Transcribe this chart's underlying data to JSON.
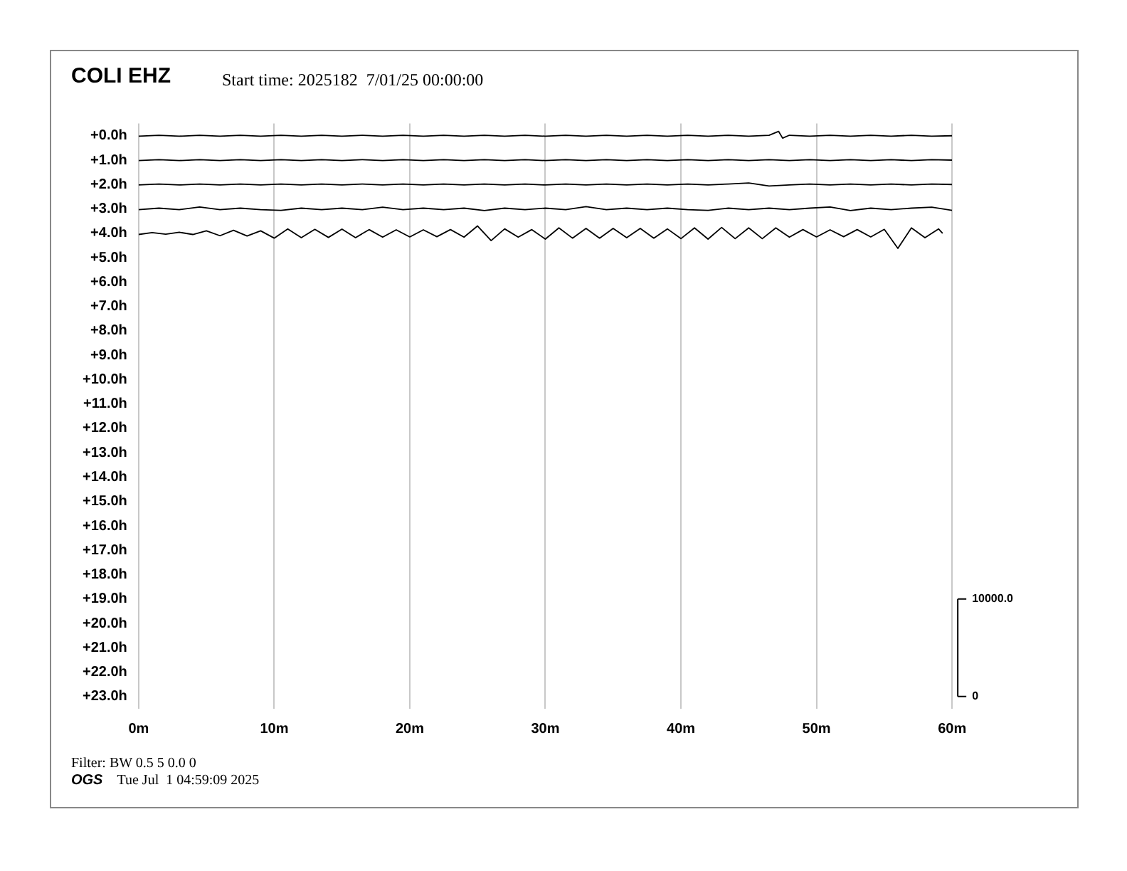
{
  "chart_data": {
    "type": "line",
    "title": "COLI EHZ",
    "subtitle": "Start time: 2025182  7/01/25 00:00:00",
    "annotations": [
      "Filter: BW 0.5 5 0.0 0",
      "OGS",
      "Tue Jul  1 04:59:09 2025"
    ],
    "x": [
      0,
      1.5,
      3,
      4.5,
      6,
      7.5,
      9,
      10.5,
      12,
      13.5,
      15,
      16.5,
      18,
      19.5,
      21,
      22.5,
      24,
      25.5,
      27,
      28.5,
      30,
      31.5,
      33,
      34.5,
      36,
      37.5,
      39,
      40.5,
      42,
      43.5,
      45,
      46.5,
      48,
      49.5,
      51,
      52.5,
      54,
      55.5,
      57,
      58.5,
      60
    ],
    "series": [
      {
        "color": "#000000",
        "x": [
          0,
          1.5,
          3,
          4.5,
          6,
          7.5,
          9,
          10.5,
          12,
          13.5,
          15,
          16.5,
          18,
          19.5,
          21,
          22.5,
          24,
          25.5,
          27,
          28.5,
          30,
          31.5,
          33,
          34.5,
          36,
          37.5,
          39,
          40.5,
          42,
          43.5,
          45,
          46.5,
          47.2,
          47.5,
          48,
          49.5,
          51,
          52.5,
          54,
          55.5,
          57,
          58.5,
          60
        ],
        "values": [
          0.02,
          -0.02,
          0.02,
          -0.02,
          0.02,
          -0.02,
          0.02,
          -0.02,
          0.02,
          -0.02,
          0.02,
          -0.02,
          0.02,
          -0.02,
          0.02,
          -0.02,
          0.02,
          -0.02,
          0.02,
          -0.02,
          0.02,
          -0.02,
          0.02,
          -0.02,
          0.02,
          -0.02,
          0.02,
          -0.02,
          0.02,
          -0.02,
          0.02,
          -0.02,
          -0.18,
          0.1,
          -0.02,
          0.02,
          -0.02,
          0.02,
          -0.02,
          0.02,
          -0.02,
          0.02,
          0
        ]
      },
      {
        "color": "#000000",
        "values": [
          1.02,
          0.98,
          1.02,
          0.98,
          1.02,
          0.98,
          1.02,
          0.98,
          1.02,
          0.98,
          1.02,
          0.98,
          1.02,
          0.98,
          1.02,
          0.98,
          1.02,
          0.98,
          1.02,
          0.98,
          1.02,
          0.98,
          1.02,
          0.98,
          1.02,
          0.98,
          1.02,
          0.98,
          1.02,
          0.98,
          1.02,
          0.98,
          1.02,
          0.98,
          1.02,
          0.98,
          1.02,
          0.98,
          1.02,
          0.98,
          1
        ]
      },
      {
        "color": "#000000",
        "values": [
          2.02,
          1.98,
          2.02,
          1.98,
          2.02,
          1.98,
          2.02,
          1.98,
          2.02,
          1.98,
          2.02,
          1.98,
          2.02,
          1.98,
          2.02,
          1.98,
          2.02,
          1.98,
          2.02,
          1.98,
          2.02,
          1.98,
          2.02,
          1.98,
          2.02,
          1.98,
          2.02,
          1.98,
          2.02,
          1.98,
          1.94,
          2.06,
          2.02,
          1.98,
          2.02,
          1.98,
          2.02,
          1.98,
          2.02,
          1.98,
          2
        ]
      },
      {
        "color": "#000000",
        "values": [
          3.03,
          2.97,
          3.03,
          2.92,
          3.03,
          2.97,
          3.03,
          3.06,
          2.97,
          3.03,
          2.97,
          3.03,
          2.93,
          3.03,
          2.97,
          3.03,
          2.97,
          3.07,
          2.97,
          3.03,
          2.97,
          3.03,
          2.91,
          3.03,
          2.97,
          3.03,
          2.97,
          3.03,
          3.06,
          2.97,
          3.03,
          2.97,
          3.03,
          2.97,
          2.92,
          3.07,
          2.97,
          3.03,
          2.97,
          2.93,
          3.06
        ]
      },
      {
        "color": "#000000",
        "x": [
          0,
          1,
          2,
          3,
          4,
          5,
          6,
          7,
          8,
          9,
          10,
          11,
          12,
          13,
          14,
          15,
          16,
          17,
          18,
          19,
          20,
          21,
          22,
          23,
          24,
          25,
          26,
          27,
          28,
          29,
          30,
          31,
          32,
          33,
          34,
          35,
          36,
          37,
          38,
          39,
          40,
          41,
          42,
          43,
          44,
          45,
          46,
          47,
          48,
          49,
          50,
          51,
          52,
          53,
          54,
          55,
          56,
          57,
          58,
          59,
          59.3
        ],
        "values": [
          4.05,
          3.97,
          4.04,
          3.96,
          4.05,
          3.9,
          4.1,
          3.88,
          4.11,
          3.9,
          4.2,
          3.82,
          4.18,
          3.84,
          4.17,
          3.83,
          4.18,
          3.85,
          4.16,
          3.86,
          4.15,
          3.86,
          4.14,
          3.85,
          4.16,
          3.7,
          4.3,
          3.82,
          4.16,
          3.85,
          4.24,
          3.78,
          4.2,
          3.8,
          4.2,
          3.8,
          4.18,
          3.8,
          4.2,
          3.82,
          4.22,
          3.78,
          4.24,
          3.76,
          4.22,
          3.78,
          4.22,
          3.78,
          4.16,
          3.85,
          4.15,
          3.86,
          4.14,
          3.85,
          4.15,
          3.84,
          4.62,
          3.78,
          4.18,
          3.82,
          4.0
        ]
      }
    ],
    "xlim": [
      0,
      60
    ],
    "xticks": [
      {
        "value": 0,
        "label": "0m"
      },
      {
        "value": 10,
        "label": "10m"
      },
      {
        "value": 20,
        "label": "20m"
      },
      {
        "value": 30,
        "label": "30m"
      },
      {
        "value": 40,
        "label": "40m"
      },
      {
        "value": 50,
        "label": "50m"
      },
      {
        "value": 60,
        "label": "60m"
      }
    ],
    "ylim": [
      23.5,
      -0.5
    ],
    "yticks": [
      {
        "value": 0,
        "label": "+0.0h"
      },
      {
        "value": 1,
        "label": "+1.0h"
      },
      {
        "value": 2,
        "label": "+2.0h"
      },
      {
        "value": 3,
        "label": "+3.0h"
      },
      {
        "value": 4,
        "label": "+4.0h"
      },
      {
        "value": 5,
        "label": "+5.0h"
      },
      {
        "value": 6,
        "label": "+6.0h"
      },
      {
        "value": 7,
        "label": "+7.0h"
      },
      {
        "value": 8,
        "label": "+8.0h"
      },
      {
        "value": 9,
        "label": "+9.0h"
      },
      {
        "value": 10,
        "label": "+10.0h"
      },
      {
        "value": 11,
        "label": "+11.0h"
      },
      {
        "value": 12,
        "label": "+12.0h"
      },
      {
        "value": 13,
        "label": "+13.0h"
      },
      {
        "value": 14,
        "label": "+14.0h"
      },
      {
        "value": 15,
        "label": "+15.0h"
      },
      {
        "value": 16,
        "label": "+16.0h"
      },
      {
        "value": 17,
        "label": "+17.0h"
      },
      {
        "value": 18,
        "label": "+18.0h"
      },
      {
        "value": 19,
        "label": "+19.0h"
      },
      {
        "value": 20,
        "label": "+20.0h"
      },
      {
        "value": 21,
        "label": "+21.0h"
      },
      {
        "value": 22,
        "label": "+22.0h"
      },
      {
        "value": 23,
        "label": "+23.0h"
      }
    ],
    "y2lim": [
      -1250,
      58750
    ],
    "y2ticks": [
      0,
      {
        "value": 10000,
        "label": "10000.0"
      }
    ],
    "grid": "x",
    "legend": false,
    "marker": "none",
    "line_style": "solid"
  }
}
